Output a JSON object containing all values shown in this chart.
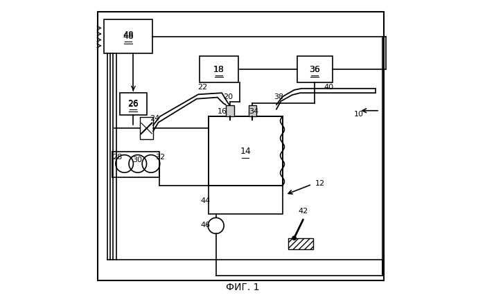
{
  "title": "ФИГ. 1",
  "bg_color": "#ffffff",
  "line_color": "#000000"
}
